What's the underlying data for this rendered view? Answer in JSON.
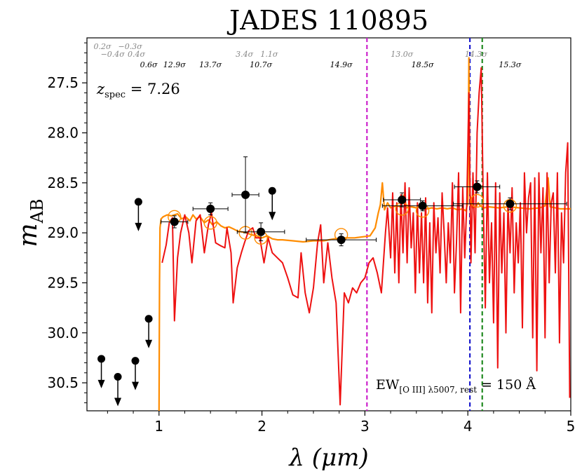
{
  "chart_data": {
    "type": "scatter",
    "title": "JADES 110895",
    "xlabel": "λ (μm)",
    "ylabel": "m",
    "ylabel_sub": "AB",
    "xlim": [
      0.3,
      5.0
    ],
    "ylim": [
      30.78,
      27.05
    ],
    "xticks": [
      1,
      2,
      3,
      4,
      5
    ],
    "yticks": [
      27.5,
      28.0,
      28.5,
      29.0,
      29.5,
      30.0,
      30.5
    ],
    "xtick_labels": [
      "1",
      "2",
      "3",
      "4",
      "5"
    ],
    "ytick_labels": [
      "27.5",
      "28.0",
      "28.5",
      "29.0",
      "29.5",
      "30.0",
      "30.5"
    ],
    "redshift_label": {
      "prefix": "z",
      "sub": "spec",
      "value": " = 7.26"
    },
    "ew_label": {
      "prefix": "EW",
      "sub": "[O III] λ5007, rest",
      "value": " = 150 Å"
    },
    "vlines": [
      {
        "name": "magenta-line",
        "x": 3.02,
        "color": "#cc22cc"
      },
      {
        "name": "blue-line",
        "x": 4.02,
        "color": "#1a1acc"
      },
      {
        "name": "green-line",
        "x": 4.14,
        "color": "#228b22"
      }
    ],
    "colors": {
      "model": "#ff8c00",
      "spectrum": "#ee1111",
      "points": "#000000",
      "model_photometry": "#ff8c00"
    },
    "snr_labels": [
      {
        "text": "0.2σ",
        "x": 0.45,
        "row": 0,
        "color": "#888888"
      },
      {
        "text": "−0.3σ",
        "x": 0.72,
        "row": 0,
        "color": "#888888"
      },
      {
        "text": "−0.4σ",
        "x": 0.55,
        "row": 1,
        "color": "#888888"
      },
      {
        "text": "0.4σ",
        "x": 0.78,
        "row": 1,
        "color": "#888888"
      },
      {
        "text": "0.6σ",
        "x": 0.9,
        "row": 2,
        "color": "#000000"
      },
      {
        "text": "12.9σ",
        "x": 1.15,
        "row": 2,
        "color": "#000000"
      },
      {
        "text": "13.7σ",
        "x": 1.5,
        "row": 2,
        "color": "#000000"
      },
      {
        "text": "3.4σ",
        "x": 1.83,
        "row": 1,
        "color": "#888888"
      },
      {
        "text": "1.1σ",
        "x": 2.07,
        "row": 1,
        "color": "#888888"
      },
      {
        "text": "10.7σ",
        "x": 1.99,
        "row": 2,
        "color": "#000000"
      },
      {
        "text": "14.9σ",
        "x": 2.77,
        "row": 2,
        "color": "#000000"
      },
      {
        "text": "13.0σ",
        "x": 3.36,
        "row": 1,
        "color": "#888888"
      },
      {
        "text": "18.5σ",
        "x": 3.56,
        "row": 2,
        "color": "#000000"
      },
      {
        "text": "14.3σ",
        "x": 4.08,
        "row": 1,
        "color": "#888888"
      },
      {
        "text": "15.3σ",
        "x": 4.41,
        "row": 2,
        "color": "#000000"
      }
    ],
    "detections": [
      {
        "x": 1.15,
        "y": 28.89,
        "xerr": 0.13,
        "yerr": 0.06
      },
      {
        "x": 1.5,
        "y": 28.76,
        "xerr": 0.17,
        "yerr": 0.06
      },
      {
        "x": 1.84,
        "y": 28.62,
        "xerr": 0.13,
        "yerr": 0.38
      },
      {
        "x": 1.99,
        "y": 28.99,
        "xerr": 0.23,
        "yerr": 0.09
      },
      {
        "x": 2.77,
        "y": 29.07,
        "xerr": 0.34,
        "yerr": 0.06
      },
      {
        "x": 3.36,
        "y": 28.67,
        "xerr": 0.18,
        "yerr": 0.07
      },
      {
        "x": 3.56,
        "y": 28.73,
        "xerr": 0.39,
        "yerr": 0.05
      },
      {
        "x": 4.09,
        "y": 28.54,
        "xerr": 0.22,
        "yerr": 0.06
      },
      {
        "x": 4.41,
        "y": 28.71,
        "xerr": 0.55,
        "yerr": 0.06
      }
    ],
    "upper_limits": [
      {
        "x": 0.44,
        "y": 30.26
      },
      {
        "x": 0.6,
        "y": 30.44
      },
      {
        "x": 0.77,
        "y": 30.28
      },
      {
        "x": 0.8,
        "y": 28.69
      },
      {
        "x": 0.9,
        "y": 29.86
      },
      {
        "x": 2.1,
        "y": 28.58
      }
    ],
    "model_photometry": [
      {
        "x": 1.15,
        "y": 28.84
      },
      {
        "x": 1.5,
        "y": 28.9
      },
      {
        "x": 1.84,
        "y": 29.0
      },
      {
        "x": 1.99,
        "y": 29.05
      },
      {
        "x": 2.77,
        "y": 29.02
      },
      {
        "x": 3.36,
        "y": 28.76
      },
      {
        "x": 3.56,
        "y": 28.78
      },
      {
        "x": 4.09,
        "y": 28.68
      },
      {
        "x": 4.41,
        "y": 28.73
      }
    ],
    "model_sed": [
      [
        1.0,
        30.78
      ],
      [
        1.005,
        29.5
      ],
      [
        1.01,
        28.95
      ],
      [
        1.02,
        28.86
      ],
      [
        1.04,
        28.84
      ],
      [
        1.08,
        28.82
      ],
      [
        1.12,
        28.83
      ],
      [
        1.18,
        28.81
      ],
      [
        1.22,
        28.86
      ],
      [
        1.26,
        28.84
      ],
      [
        1.3,
        28.88
      ],
      [
        1.33,
        28.82
      ],
      [
        1.36,
        28.86
      ],
      [
        1.4,
        28.84
      ],
      [
        1.44,
        28.9
      ],
      [
        1.48,
        28.87
      ],
      [
        1.52,
        28.92
      ],
      [
        1.56,
        28.89
      ],
      [
        1.6,
        28.93
      ],
      [
        1.64,
        28.95
      ],
      [
        1.68,
        28.94
      ],
      [
        1.72,
        28.96
      ],
      [
        1.76,
        28.98
      ],
      [
        1.8,
        28.99
      ],
      [
        1.85,
        29.0
      ],
      [
        1.9,
        29.02
      ],
      [
        1.95,
        29.03
      ],
      [
        2.0,
        29.05
      ],
      [
        2.05,
        29.03
      ],
      [
        2.1,
        29.06
      ],
      [
        2.15,
        29.07
      ],
      [
        2.2,
        29.07
      ],
      [
        2.3,
        29.08
      ],
      [
        2.4,
        29.09
      ],
      [
        2.5,
        29.08
      ],
      [
        2.6,
        29.08
      ],
      [
        2.7,
        29.06
      ],
      [
        2.8,
        29.05
      ],
      [
        2.9,
        29.05
      ],
      [
        2.98,
        29.04
      ],
      [
        3.05,
        29.03
      ],
      [
        3.1,
        28.95
      ],
      [
        3.13,
        28.8
      ],
      [
        3.15,
        28.72
      ],
      [
        3.17,
        28.5
      ],
      [
        3.19,
        28.77
      ],
      [
        3.22,
        28.7
      ],
      [
        3.25,
        28.75
      ],
      [
        3.3,
        28.73
      ],
      [
        3.35,
        28.74
      ],
      [
        3.38,
        28.62
      ],
      [
        3.4,
        28.75
      ],
      [
        3.45,
        28.74
      ],
      [
        3.5,
        28.75
      ],
      [
        3.55,
        28.73
      ],
      [
        3.6,
        28.76
      ],
      [
        3.65,
        28.75
      ],
      [
        3.7,
        28.76
      ],
      [
        3.75,
        28.75
      ],
      [
        3.8,
        28.76
      ],
      [
        3.85,
        28.75
      ],
      [
        3.9,
        28.77
      ],
      [
        3.95,
        28.76
      ],
      [
        3.98,
        28.78
      ],
      [
        4.0,
        28.7
      ],
      [
        4.01,
        27.25
      ],
      [
        4.02,
        28.6
      ],
      [
        4.04,
        28.75
      ],
      [
        4.08,
        28.74
      ],
      [
        4.1,
        28.7
      ],
      [
        4.12,
        28.73
      ],
      [
        4.16,
        28.75
      ],
      [
        4.2,
        28.74
      ],
      [
        4.3,
        28.75
      ],
      [
        4.4,
        28.74
      ],
      [
        4.5,
        28.75
      ],
      [
        4.6,
        28.76
      ],
      [
        4.7,
        28.75
      ],
      [
        4.75,
        28.73
      ],
      [
        4.78,
        28.45
      ],
      [
        4.8,
        28.74
      ],
      [
        4.9,
        28.76
      ],
      [
        5.0,
        28.76
      ]
    ],
    "spectrum": [
      [
        1.03,
        29.3
      ],
      [
        1.07,
        29.12
      ],
      [
        1.1,
        28.9
      ],
      [
        1.13,
        28.85
      ],
      [
        1.15,
        29.88
      ],
      [
        1.18,
        29.25
      ],
      [
        1.21,
        29.0
      ],
      [
        1.25,
        28.82
      ],
      [
        1.29,
        29.0
      ],
      [
        1.32,
        29.3
      ],
      [
        1.36,
        28.88
      ],
      [
        1.4,
        28.82
      ],
      [
        1.44,
        29.2
      ],
      [
        1.48,
        28.92
      ],
      [
        1.51,
        28.8
      ],
      [
        1.55,
        29.1
      ],
      [
        1.6,
        29.13
      ],
      [
        1.64,
        29.15
      ],
      [
        1.66,
        28.95
      ],
      [
        1.7,
        29.2
      ],
      [
        1.72,
        29.7
      ],
      [
        1.76,
        29.35
      ],
      [
        1.8,
        29.2
      ],
      [
        1.83,
        29.1
      ],
      [
        1.87,
        28.98
      ],
      [
        1.91,
        28.95
      ],
      [
        1.94,
        29.05
      ],
      [
        1.98,
        29.05
      ],
      [
        2.02,
        29.3
      ],
      [
        2.06,
        29.05
      ],
      [
        2.1,
        29.2
      ],
      [
        2.15,
        29.25
      ],
      [
        2.2,
        29.3
      ],
      [
        2.25,
        29.45
      ],
      [
        2.3,
        29.62
      ],
      [
        2.35,
        29.65
      ],
      [
        2.38,
        29.2
      ],
      [
        2.42,
        29.6
      ],
      [
        2.46,
        29.8
      ],
      [
        2.5,
        29.55
      ],
      [
        2.54,
        29.1
      ],
      [
        2.57,
        28.92
      ],
      [
        2.6,
        29.5
      ],
      [
        2.64,
        29.1
      ],
      [
        2.68,
        29.45
      ],
      [
        2.72,
        29.7
      ],
      [
        2.76,
        30.72
      ],
      [
        2.8,
        29.6
      ],
      [
        2.84,
        29.7
      ],
      [
        2.88,
        29.55
      ],
      [
        2.92,
        29.6
      ],
      [
        2.96,
        29.5
      ],
      [
        3.0,
        29.45
      ],
      [
        3.04,
        29.3
      ],
      [
        3.08,
        29.25
      ],
      [
        3.12,
        29.4
      ],
      [
        3.16,
        29.6
      ],
      [
        3.2,
        29.0
      ],
      [
        3.22,
        28.75
      ],
      [
        3.25,
        29.25
      ],
      [
        3.27,
        28.6
      ],
      [
        3.29,
        29.4
      ],
      [
        3.31,
        28.7
      ],
      [
        3.33,
        29.5
      ],
      [
        3.35,
        28.62
      ],
      [
        3.37,
        29.2
      ],
      [
        3.39,
        28.5
      ],
      [
        3.41,
        29.3
      ],
      [
        3.43,
        28.55
      ],
      [
        3.45,
        29.15
      ],
      [
        3.47,
        28.8
      ],
      [
        3.49,
        29.6
      ],
      [
        3.51,
        28.7
      ],
      [
        3.53,
        29.4
      ],
      [
        3.55,
        28.8
      ],
      [
        3.57,
        29.5
      ],
      [
        3.59,
        28.65
      ],
      [
        3.61,
        29.7
      ],
      [
        3.63,
        28.9
      ],
      [
        3.65,
        29.8
      ],
      [
        3.67,
        28.7
      ],
      [
        3.69,
        29.2
      ],
      [
        3.71,
        28.85
      ],
      [
        3.73,
        29.4
      ],
      [
        3.75,
        28.6
      ],
      [
        3.77,
        29.0
      ],
      [
        3.79,
        29.5
      ],
      [
        3.81,
        28.9
      ],
      [
        3.83,
        29.3
      ],
      [
        3.85,
        28.5
      ],
      [
        3.87,
        29.6
      ],
      [
        3.89,
        29.1
      ],
      [
        3.91,
        28.4
      ],
      [
        3.93,
        29.8
      ],
      [
        3.95,
        28.55
      ],
      [
        3.97,
        29.25
      ],
      [
        3.99,
        28.7
      ],
      [
        4.01,
        27.6
      ],
      [
        4.03,
        29.3
      ],
      [
        4.05,
        28.4
      ],
      [
        4.07,
        29.2
      ],
      [
        4.09,
        28.0
      ],
      [
        4.11,
        27.6
      ],
      [
        4.13,
        27.35
      ],
      [
        4.15,
        28.7
      ],
      [
        4.17,
        29.75
      ],
      [
        4.19,
        28.4
      ],
      [
        4.21,
        29.5
      ],
      [
        4.23,
        28.9
      ],
      [
        4.25,
        29.9
      ],
      [
        4.27,
        28.5
      ],
      [
        4.29,
        30.35
      ],
      [
        4.31,
        28.6
      ],
      [
        4.33,
        29.4
      ],
      [
        4.35,
        28.8
      ],
      [
        4.37,
        30.0
      ],
      [
        4.39,
        28.7
      ],
      [
        4.41,
        29.2
      ],
      [
        4.43,
        28.55
      ],
      [
        4.45,
        29.6
      ],
      [
        4.47,
        28.9
      ],
      [
        4.49,
        29.3
      ],
      [
        4.51,
        28.7
      ],
      [
        4.53,
        29.95
      ],
      [
        4.55,
        28.4
      ],
      [
        4.57,
        29.0
      ],
      [
        4.59,
        28.65
      ],
      [
        4.61,
        28.5
      ],
      [
        4.63,
        30.05
      ],
      [
        4.65,
        28.45
      ],
      [
        4.67,
        30.38
      ],
      [
        4.69,
        28.4
      ],
      [
        4.71,
        29.2
      ],
      [
        4.73,
        28.55
      ],
      [
        4.75,
        30.05
      ],
      [
        4.77,
        28.4
      ],
      [
        4.79,
        29.5
      ],
      [
        4.81,
        28.7
      ],
      [
        4.83,
        28.6
      ],
      [
        4.85,
        29.4
      ],
      [
        4.87,
        28.4
      ],
      [
        4.89,
        30.1
      ],
      [
        4.91,
        28.8
      ],
      [
        4.93,
        29.3
      ],
      [
        4.95,
        28.4
      ],
      [
        4.97,
        28.1
      ],
      [
        4.99,
        30.65
      ]
    ]
  }
}
